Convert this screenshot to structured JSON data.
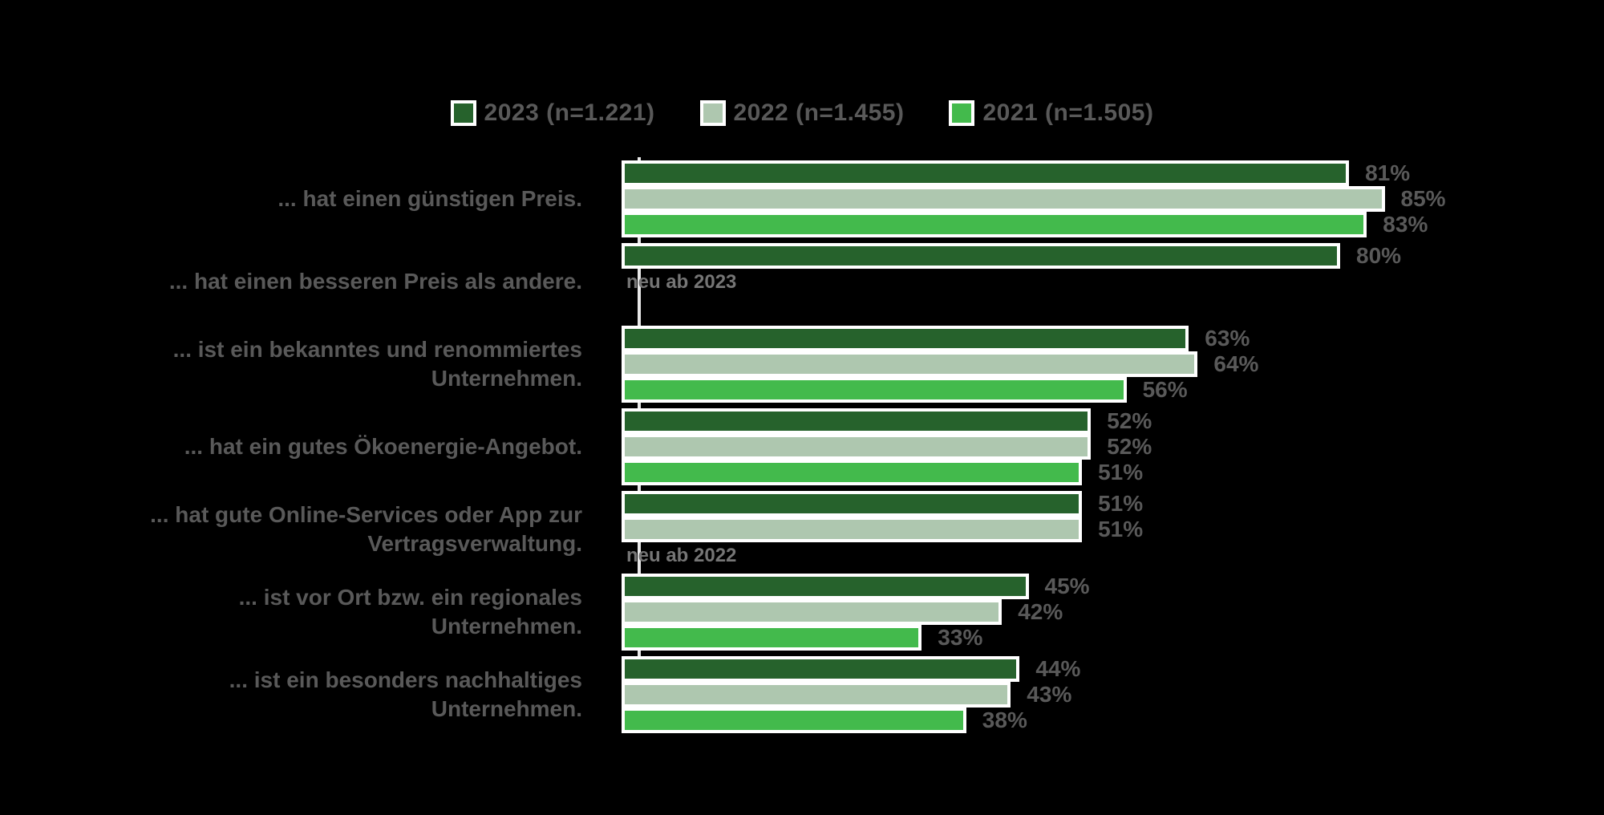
{
  "colors": {
    "background": "#000000",
    "text_gray": "#595959",
    "annotation_gray": "#757575",
    "axis": "#e8e8e8",
    "bar_border": "#ffffff",
    "series_2023": "#26622c",
    "series_2022": "#aec7af",
    "series_2021": "#43ba4c"
  },
  "legend": [
    {
      "label": "2023 (n=1.221)",
      "color": "#26622c"
    },
    {
      "label": "2022 (n=1.455)",
      "color": "#aec7af"
    },
    {
      "label": "2021 (n=1.505)",
      "color": "#43ba4c"
    }
  ],
  "chart_data": {
    "type": "bar",
    "orientation": "horizontal",
    "title": "",
    "xlabel": "",
    "ylabel": "",
    "xlim": [
      0,
      100
    ],
    "value_suffix": "%",
    "grid": false,
    "legend_position": "top-center",
    "categories": [
      "... hat einen günstigen Preis.",
      "... hat einen besseren Preis als andere.",
      "... ist ein bekanntes und renommiertes Unternehmen.",
      "... hat ein gutes Ökoenergie-Angebot.",
      "... hat gute Online-Services oder App zur Vertragsverwaltung.",
      "... ist vor Ort bzw. ein regionales Unternehmen.",
      "... ist ein besonders nachhaltiges Unternehmen."
    ],
    "series": [
      {
        "name": "2023 (n=1.221)",
        "color": "#26622c",
        "values": [
          81,
          80,
          63,
          52,
          51,
          45,
          44
        ]
      },
      {
        "name": "2022 (n=1.455)",
        "color": "#aec7af",
        "values": [
          85,
          null,
          64,
          52,
          51,
          42,
          43
        ]
      },
      {
        "name": "2021 (n=1.505)",
        "color": "#43ba4c",
        "values": [
          83,
          null,
          56,
          51,
          null,
          33,
          38
        ]
      }
    ],
    "annotations": [
      {
        "category_index": 1,
        "slot": 1,
        "text": "neu ab 2023"
      },
      {
        "category_index": 4,
        "slot": 2,
        "text": "neu ab 2022"
      }
    ]
  }
}
